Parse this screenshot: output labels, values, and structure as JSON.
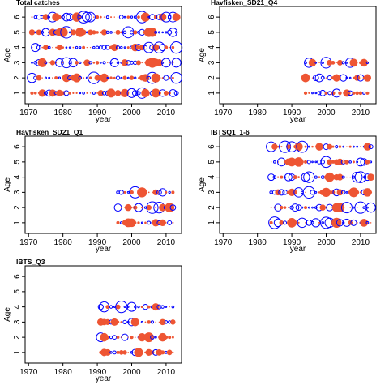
{
  "colors": {
    "positive": "#0000ff",
    "negative": "#ee5533",
    "frame": "#000000"
  },
  "chart_data": [
    {
      "type": "scatter",
      "title": "Total catches",
      "xlabel": "year",
      "ylabel": "Age",
      "xlim": [
        1969,
        2014.5
      ],
      "ylim": [
        0.3,
        6.7
      ],
      "xticks": [
        "1970",
        "1980",
        "1990",
        "2000",
        "2010"
      ],
      "yticks": [
        "1",
        "2",
        "3",
        "4",
        "5",
        "6"
      ],
      "x_from": 1971,
      "x_to": 2013,
      "ages": [
        1,
        2,
        3,
        4,
        5,
        6
      ],
      "grid": false,
      "symbol_size_meaning": "residual magnitude",
      "symbol_pattern_seed": 11
    },
    {
      "type": "scatter",
      "title": "Havfisken_SD21_Q4",
      "xlabel": "year",
      "ylabel": "Age",
      "xlim": [
        1969,
        2014.5
      ],
      "ylim": [
        0.3,
        6.7
      ],
      "xticks": [
        "1970",
        "1980",
        "1990",
        "2000",
        "2010"
      ],
      "yticks": [
        "1",
        "2",
        "3",
        "4",
        "5",
        "6"
      ],
      "x_from": 1994,
      "x_to": 2012,
      "ages": [
        1,
        2,
        3
      ],
      "grid": false,
      "symbol_pattern_seed": 23
    },
    {
      "type": "scatter",
      "title": "Havfisken_SD21_Q1",
      "xlabel": "year",
      "ylabel": "Age",
      "xlim": [
        1969,
        2014.5
      ],
      "ylim": [
        0.3,
        6.7
      ],
      "xticks": [
        "1970",
        "1980",
        "1990",
        "2000",
        "2010"
      ],
      "yticks": [
        "1",
        "2",
        "3",
        "4",
        "5",
        "6"
      ],
      "x_from": 1996,
      "x_to": 2012,
      "ages": [
        1,
        2,
        3
      ],
      "grid": false,
      "symbol_pattern_seed": 37
    },
    {
      "type": "scatter",
      "title": "IBTSQ1_1-6",
      "xlabel": "year",
      "ylabel": "Age",
      "xlim": [
        1969,
        2014.5
      ],
      "ylim": [
        0.3,
        6.7
      ],
      "xticks": [
        "1970",
        "1980",
        "1990",
        "2000",
        "2010"
      ],
      "yticks": [
        "1",
        "2",
        "3",
        "4",
        "5",
        "6"
      ],
      "x_from": 1984,
      "x_to": 2013,
      "ages": [
        1,
        2,
        3,
        4,
        5,
        6
      ],
      "grid": false,
      "symbol_pattern_seed": 41
    },
    {
      "type": "scatter",
      "title": "IBTS_Q3",
      "xlabel": "year",
      "ylabel": "Age",
      "xlim": [
        1969,
        2014.5
      ],
      "ylim": [
        0.3,
        6.7
      ],
      "xticks": [
        "1970",
        "1980",
        "1990",
        "2000",
        "2010"
      ],
      "yticks": [
        "1",
        "2",
        "3",
        "4",
        "5",
        "6"
      ],
      "x_from": 1991,
      "x_to": 2012,
      "ages": [
        1,
        2,
        3,
        4
      ],
      "grid": false,
      "symbol_pattern_seed": 53
    }
  ]
}
